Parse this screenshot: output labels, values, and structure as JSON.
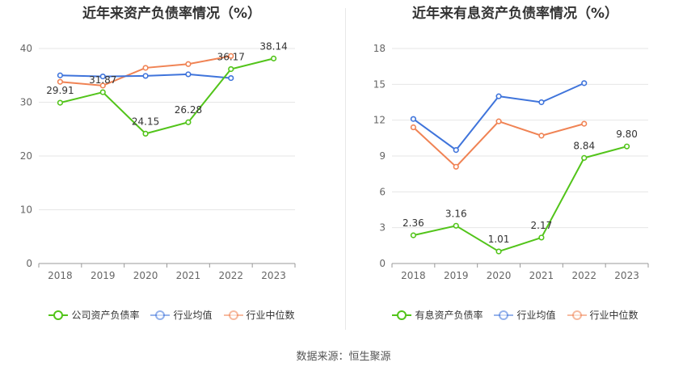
{
  "chart_data": [
    {
      "type": "line",
      "title": "近年来资产负债率情况（%）",
      "categories": [
        "2018",
        "2019",
        "2020",
        "2021",
        "2022",
        "2023"
      ],
      "ylim": [
        0,
        40
      ],
      "yticks": [
        0,
        10,
        20,
        30,
        40
      ],
      "grid": true,
      "legend_position": "bottom",
      "series": [
        {
          "name": "公司资产负债率",
          "color": "#52c41a",
          "values": [
            29.91,
            31.87,
            24.15,
            26.28,
            36.17,
            38.14
          ],
          "labels": [
            "29.91",
            "31.87",
            "24.15",
            "26.28",
            "36.17",
            "38.14"
          ],
          "show_labels": true
        },
        {
          "name": "行业均值",
          "color": "#3f74db",
          "values": [
            35.0,
            34.8,
            34.9,
            35.2,
            34.5,
            null
          ],
          "show_labels": false
        },
        {
          "name": "行业中位数",
          "color": "#f08354",
          "values": [
            33.8,
            33.1,
            36.4,
            37.1,
            38.6,
            null
          ],
          "show_labels": false
        }
      ]
    },
    {
      "type": "line",
      "title": "近年来有息资产负债率情况（%）",
      "categories": [
        "2018",
        "2019",
        "2020",
        "2021",
        "2022",
        "2023"
      ],
      "ylim": [
        0,
        18
      ],
      "yticks": [
        0,
        3,
        6,
        9,
        12,
        15,
        18
      ],
      "grid": true,
      "legend_position": "bottom",
      "series": [
        {
          "name": "有息资产负债率",
          "color": "#52c41a",
          "values": [
            2.36,
            3.16,
            1.01,
            2.17,
            8.84,
            9.8
          ],
          "labels": [
            "2.36",
            "3.16",
            "1.01",
            "2.17",
            "8.84",
            "9.80"
          ],
          "show_labels": true
        },
        {
          "name": "行业均值",
          "color": "#3f74db",
          "values": [
            12.1,
            9.5,
            14.0,
            13.5,
            15.1,
            null
          ],
          "show_labels": false
        },
        {
          "name": "行业中位数",
          "color": "#f08354",
          "values": [
            11.4,
            8.1,
            11.9,
            10.7,
            11.7,
            null
          ],
          "show_labels": false
        }
      ]
    }
  ],
  "footer": {
    "source": "数据来源：恒生聚源"
  }
}
